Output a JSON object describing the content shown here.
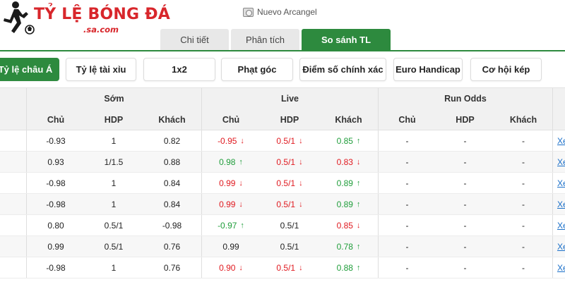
{
  "logo": {
    "title": "TỶ LỆ BÓNG ĐÁ",
    "subtitle": ".sa.com"
  },
  "team": {
    "name": "Nuevo Arcangel"
  },
  "tabs": [
    {
      "label": "Chi tiết",
      "active": false
    },
    {
      "label": "Phân tích",
      "active": false
    },
    {
      "label": "So sánh TL",
      "active": true
    }
  ],
  "bet_types": [
    {
      "label": "Tỷ lệ châu Á",
      "active": true
    },
    {
      "label": "Tỷ lệ tài xỉu",
      "active": false
    },
    {
      "label": "1x2",
      "active": false
    },
    {
      "label": "Phạt góc",
      "active": false
    },
    {
      "label": "Điểm số chính xác",
      "active": false
    },
    {
      "label": "Euro Handicap",
      "active": false
    },
    {
      "label": "Cơ hội kép",
      "active": false
    }
  ],
  "table": {
    "groups": [
      "Sớm",
      "Live",
      "Run Odds"
    ],
    "columns": [
      "Chủ",
      "HDP",
      "Khách",
      "Chủ",
      "HDP",
      "Khách",
      "Chủ",
      "HDP",
      "Khách"
    ],
    "link_label": "Xe",
    "rows": [
      {
        "early": [
          "-0.93",
          "1",
          "0.82"
        ],
        "live": [
          {
            "value": "-0.95",
            "trend": "down"
          },
          {
            "value": "0.5/1",
            "trend": "down"
          },
          {
            "value": "0.85",
            "trend": "up"
          }
        ],
        "run": [
          "-",
          "-",
          "-"
        ]
      },
      {
        "early": [
          "0.93",
          "1/1.5",
          "0.88"
        ],
        "live": [
          {
            "value": "0.98",
            "trend": "up"
          },
          {
            "value": "0.5/1",
            "trend": "down"
          },
          {
            "value": "0.83",
            "trend": "down"
          }
        ],
        "run": [
          "-",
          "-",
          "-"
        ]
      },
      {
        "early": [
          "-0.98",
          "1",
          "0.84"
        ],
        "live": [
          {
            "value": "0.99",
            "trend": "down"
          },
          {
            "value": "0.5/1",
            "trend": "down"
          },
          {
            "value": "0.89",
            "trend": "up"
          }
        ],
        "run": [
          "-",
          "-",
          "-"
        ]
      },
      {
        "early": [
          "-0.98",
          "1",
          "0.84"
        ],
        "live": [
          {
            "value": "0.99",
            "trend": "down"
          },
          {
            "value": "0.5/1",
            "trend": "down"
          },
          {
            "value": "0.89",
            "trend": "up"
          }
        ],
        "run": [
          "-",
          "-",
          "-"
        ]
      },
      {
        "early": [
          "0.80",
          "0.5/1",
          "-0.98"
        ],
        "live": [
          {
            "value": "-0.97",
            "trend": "up"
          },
          {
            "value": "0.5/1",
            "trend": "none"
          },
          {
            "value": "0.85",
            "trend": "down"
          }
        ],
        "run": [
          "-",
          "-",
          "-"
        ]
      },
      {
        "early": [
          "0.99",
          "0.5/1",
          "0.76"
        ],
        "live": [
          {
            "value": "0.99",
            "trend": "none"
          },
          {
            "value": "0.5/1",
            "trend": "none"
          },
          {
            "value": "0.78",
            "trend": "up"
          }
        ],
        "run": [
          "-",
          "-",
          "-"
        ]
      },
      {
        "early": [
          "-0.98",
          "1",
          "0.76"
        ],
        "live": [
          {
            "value": "0.90",
            "trend": "down"
          },
          {
            "value": "0.5/1",
            "trend": "down"
          },
          {
            "value": "0.88",
            "trend": "up"
          }
        ],
        "run": [
          "-",
          "-",
          "-"
        ]
      }
    ]
  },
  "colors": {
    "accent": "#2d8a3e",
    "down": "#e0191f",
    "up": "#1f9d3a",
    "link": "#1a6fc9"
  },
  "icons": {
    "down": "arrow-down-icon",
    "up": "arrow-up-icon"
  }
}
